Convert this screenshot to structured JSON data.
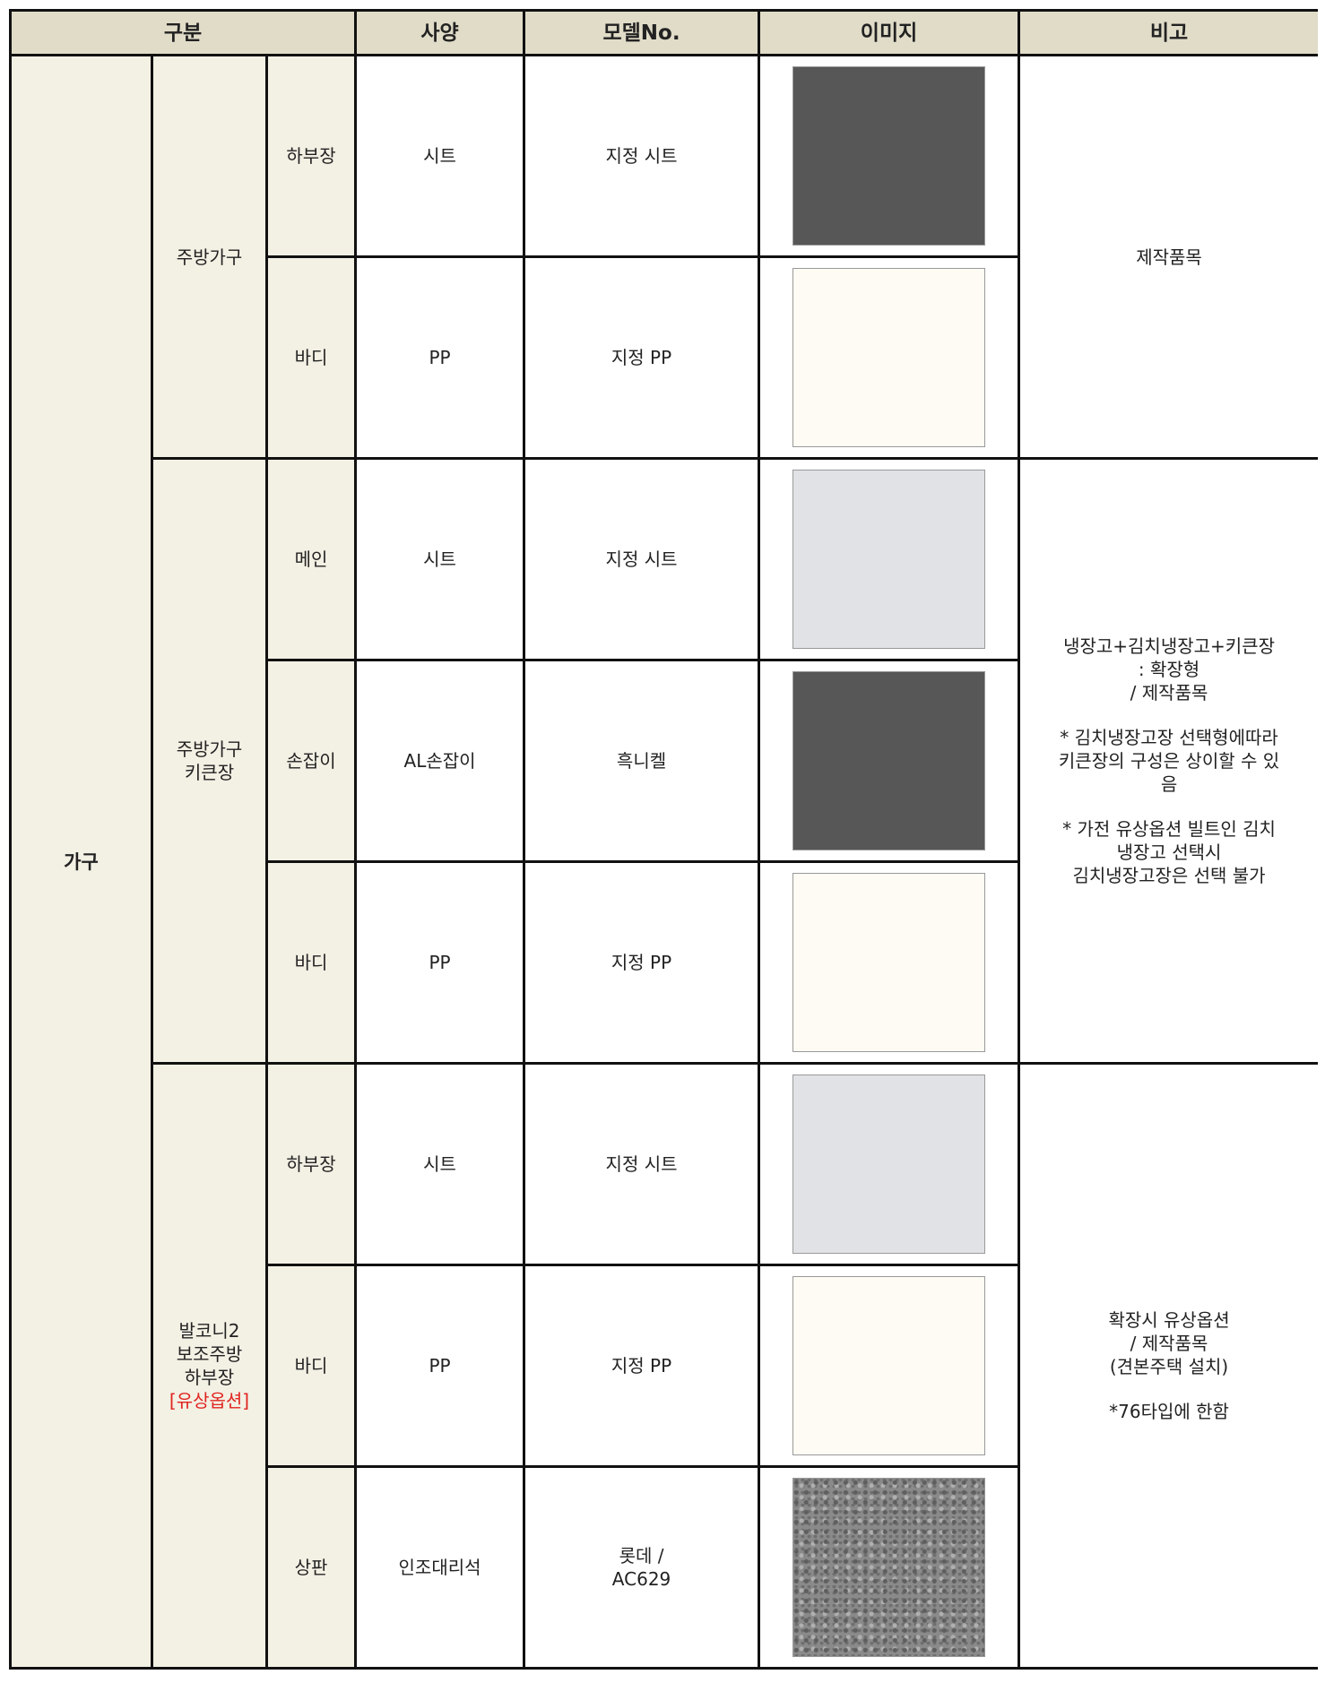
{
  "header": [
    "구분",
    "사양",
    "모델No.",
    "이미지",
    "비고"
  ],
  "category": "가구",
  "groups": [
    {
      "name_lines": [
        "주방가구"
      ],
      "remarks": [
        [
          "제작품목"
        ]
      ],
      "items": [
        {
          "part": "하부장",
          "spec": "시트",
          "model": [
            "지정 시트"
          ]
        },
        {
          "part": "바디",
          "spec": "PP",
          "model": [
            "지정 PP"
          ]
        }
      ]
    },
    {
      "name_lines": [
        "주방가구",
        "키큰장"
      ],
      "remarks": [
        [
          "냉장고+김치냉장고+키큰장",
          ": 확장형",
          "/ 제작품목"
        ],
        [
          "* 김치냉장고장 선택형에따라",
          "키큰장의 구성은 상이할 수 있",
          "음"
        ],
        [
          "* 가전 유상옵션 빌트인 김치",
          "냉장고 선택시",
          "김치냉장고장은 선택 불가"
        ]
      ],
      "items": [
        {
          "part": "메인",
          "spec": "시트",
          "model": [
            "지정 시트"
          ]
        },
        {
          "part": "손잡이",
          "spec": "AL손잡이",
          "model": [
            "흑니켈"
          ]
        },
        {
          "part": "바디",
          "spec": "PP",
          "model": [
            "지정 PP"
          ]
        }
      ]
    },
    {
      "name_lines": [
        "발코니2",
        "보조주방",
        "하부장"
      ],
      "option": "[유상옵션]",
      "remarks": [
        [
          "확장시 유상옵션",
          "/ 제작품목",
          "(견본주택 설치)"
        ],
        [
          "*76타입에 한함"
        ]
      ],
      "items": [
        {
          "part": "하부장",
          "spec": "시트",
          "model": [
            "지정 시트"
          ]
        },
        {
          "part": "바디",
          "spec": "PP",
          "model": [
            "지정 PP"
          ]
        },
        {
          "part": "상판",
          "spec": "인조대리석",
          "model": [
            "롯데 /",
            "AC629"
          ]
        }
      ]
    }
  ]
}
